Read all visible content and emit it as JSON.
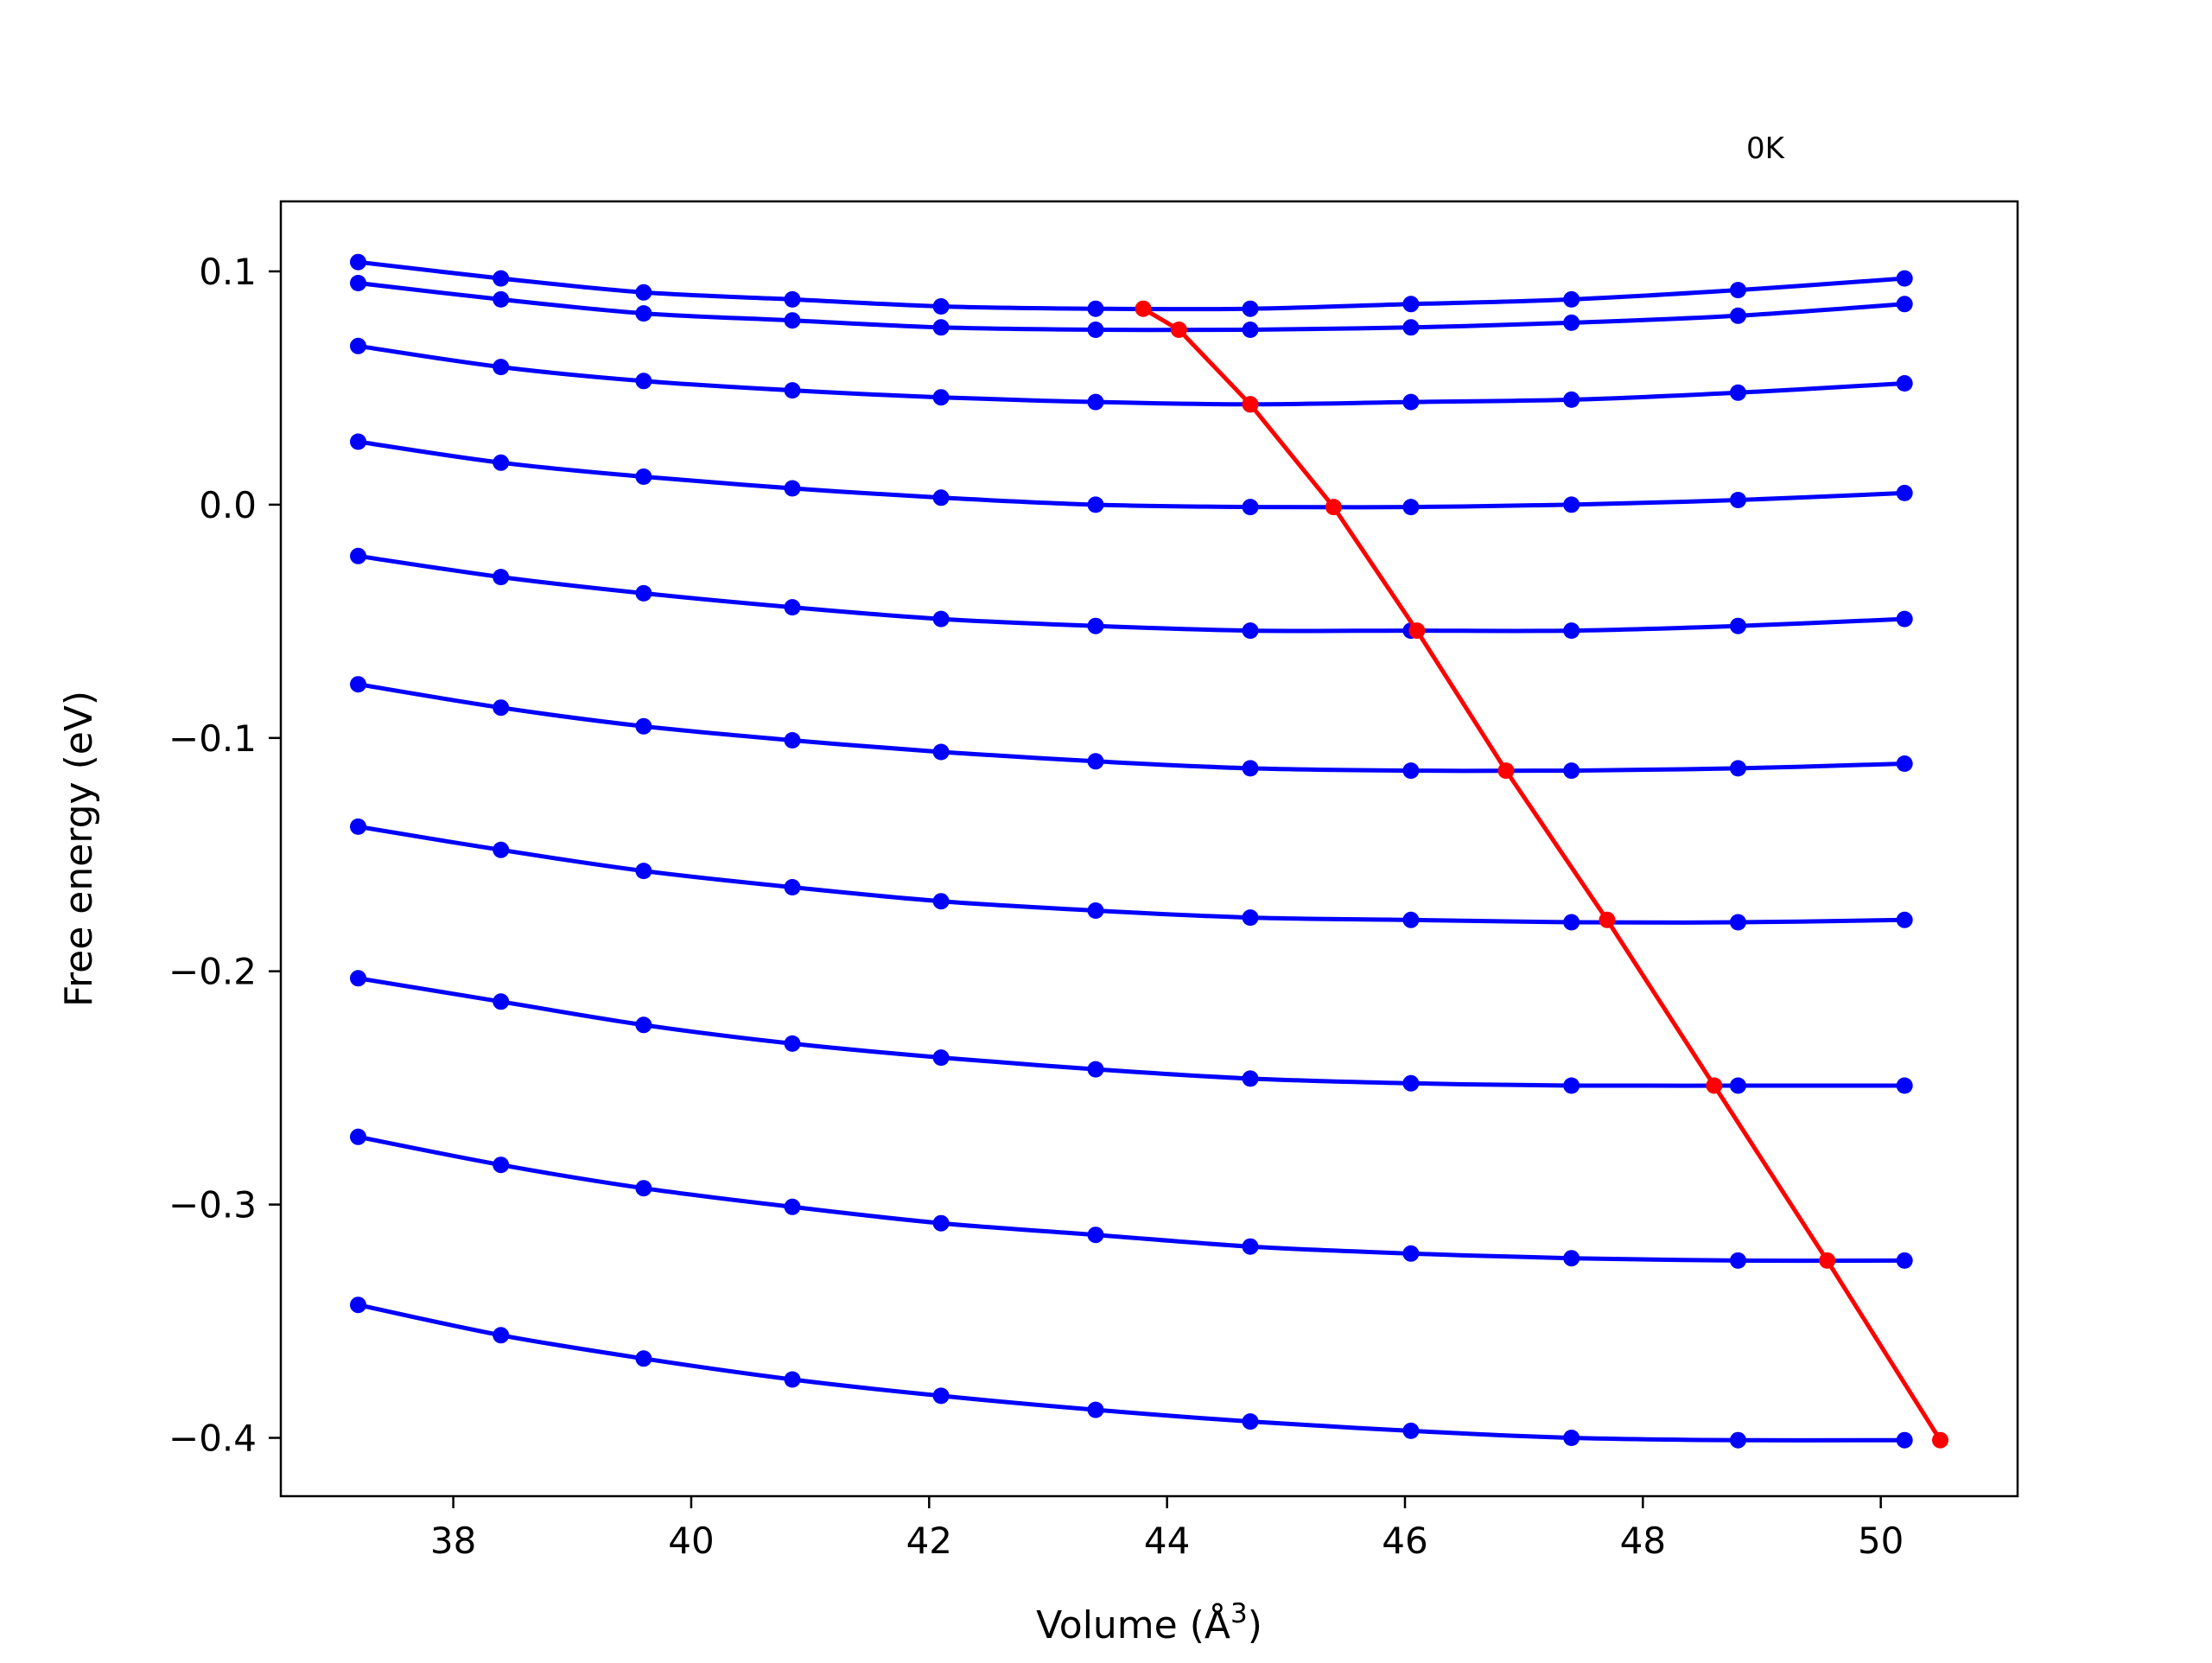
{
  "chart_data": {
    "type": "line",
    "annotation": "0K",
    "xlabel": "Volume (Å",
    "xlabel_sup": "3",
    "xlabel_end": ")",
    "ylabel": "Free energy (eV)",
    "xlim": [
      36.55,
      51.15
    ],
    "ylim": [
      -0.425,
      0.13
    ],
    "xticks": [
      38,
      40,
      42,
      44,
      46,
      48,
      50
    ],
    "xtick_labels": [
      "38",
      "40",
      "42",
      "44",
      "46",
      "48",
      "50"
    ],
    "yticks": [
      0.1,
      0.0,
      -0.1,
      -0.2,
      -0.3,
      -0.4
    ],
    "ytick_labels": [
      "0.1",
      "0.0",
      "−0.1",
      "−0.2",
      "−0.3",
      "−0.4"
    ],
    "grid": false,
    "x": [
      37.2,
      38.4,
      39.6,
      40.85,
      42.1,
      43.4,
      44.7,
      46.05,
      47.4,
      48.8,
      50.2
    ],
    "series_color": "#0000ff",
    "minima_color": "#ff0000",
    "series": [
      {
        "values": [
          0.104,
          0.097,
          0.091,
          0.088,
          0.085,
          0.084,
          0.084,
          0.086,
          0.088,
          0.092,
          0.097
        ]
      },
      {
        "values": [
          0.095,
          0.088,
          0.082,
          0.079,
          0.076,
          0.075,
          0.075,
          0.076,
          0.078,
          0.081,
          0.086
        ]
      },
      {
        "values": [
          0.068,
          0.059,
          0.053,
          0.049,
          0.046,
          0.044,
          0.043,
          0.044,
          0.045,
          0.048,
          0.052
        ]
      },
      {
        "values": [
          0.027,
          0.018,
          0.012,
          0.007,
          0.003,
          0.0,
          -0.001,
          -0.001,
          0.0,
          0.002,
          0.005
        ]
      },
      {
        "values": [
          -0.022,
          -0.031,
          -0.038,
          -0.044,
          -0.049,
          -0.052,
          -0.054,
          -0.054,
          -0.054,
          -0.052,
          -0.049
        ]
      },
      {
        "values": [
          -0.077,
          -0.087,
          -0.095,
          -0.101,
          -0.106,
          -0.11,
          -0.113,
          -0.114,
          -0.114,
          -0.113,
          -0.111
        ]
      },
      {
        "values": [
          -0.138,
          -0.148,
          -0.157,
          -0.164,
          -0.17,
          -0.174,
          -0.177,
          -0.178,
          -0.179,
          -0.179,
          -0.178
        ]
      },
      {
        "values": [
          -0.203,
          -0.213,
          -0.223,
          -0.231,
          -0.237,
          -0.242,
          -0.246,
          -0.248,
          -0.249,
          -0.249,
          -0.249
        ]
      },
      {
        "values": [
          -0.271,
          -0.283,
          -0.293,
          -0.301,
          -0.308,
          -0.313,
          -0.318,
          -0.321,
          -0.323,
          -0.324,
          -0.324
        ]
      },
      {
        "values": [
          -0.343,
          -0.356,
          -0.366,
          -0.375,
          -0.382,
          -0.388,
          -0.393,
          -0.397,
          -0.4,
          -0.401,
          -0.401
        ]
      }
    ],
    "minima": {
      "x": [
        43.8,
        44.1,
        44.7,
        45.4,
        46.1,
        46.85,
        47.7,
        48.6,
        49.55,
        50.5
      ],
      "values": [
        0.084,
        0.075,
        0.043,
        -0.001,
        -0.054,
        -0.114,
        -0.178,
        -0.249,
        -0.324,
        -0.401
      ]
    }
  }
}
